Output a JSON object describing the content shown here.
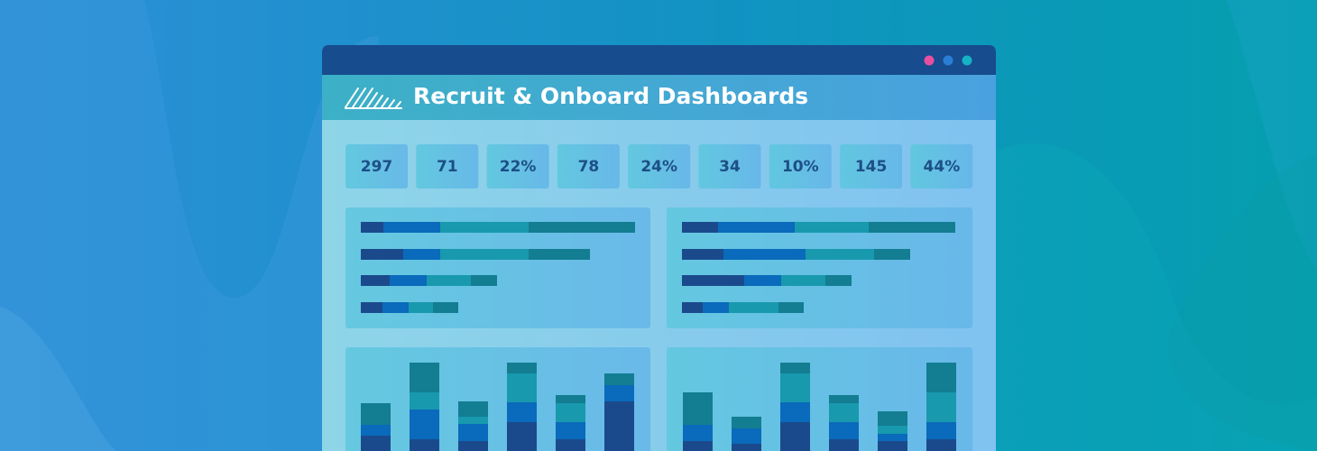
{
  "header": {
    "title": "Recruit & Onboard Dashboards"
  },
  "kpis": [
    "297",
    "71",
    "22%",
    "78",
    "24%",
    "34",
    "10%",
    "145",
    "44%"
  ]
}
